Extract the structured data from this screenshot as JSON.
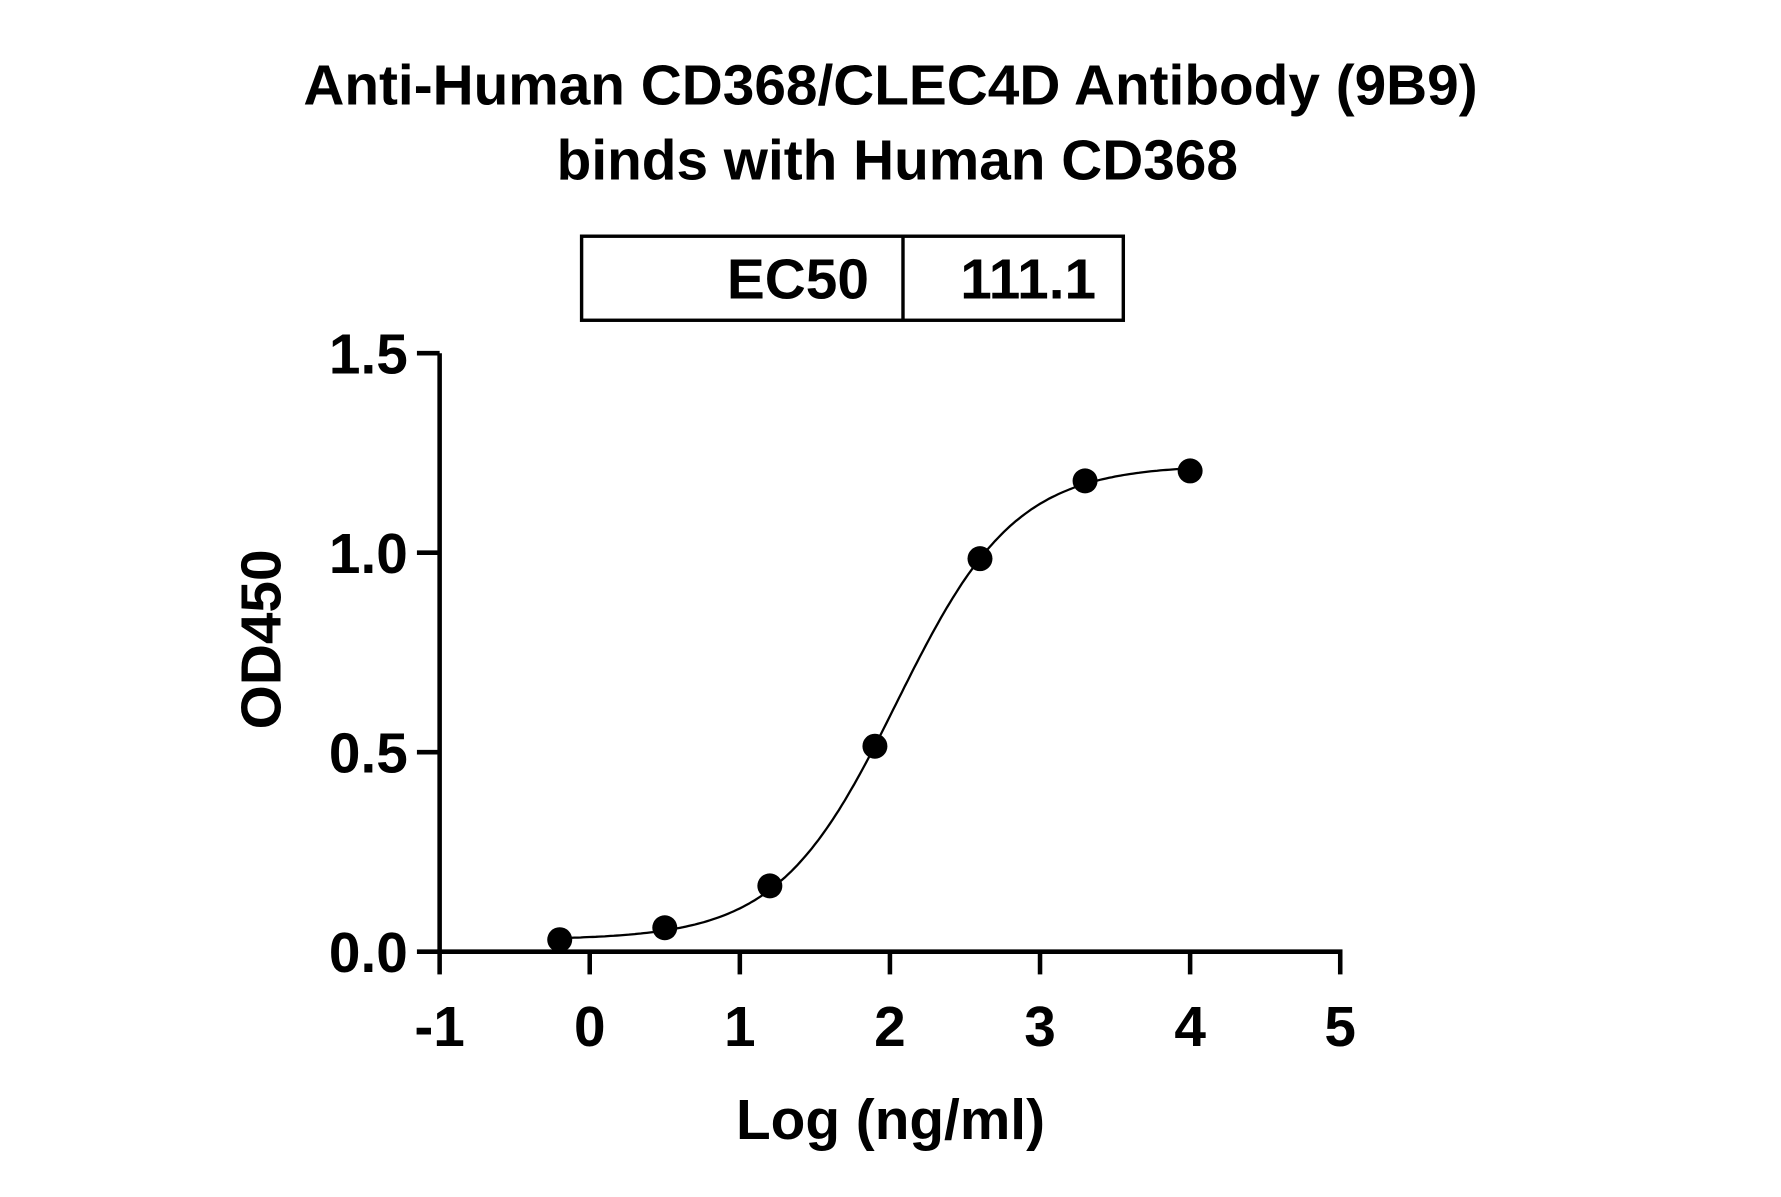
{
  "chart_data": {
    "type": "scatter",
    "title": [
      "Anti-Human CD368/CLEC4D Antibody (9B9)",
      "binds with Human CD368"
    ],
    "xlabel": "Log (ng/ml)",
    "ylabel": "OD450",
    "xlim": [
      -1,
      5
    ],
    "ylim": [
      0,
      1.5
    ],
    "xticks": [
      "-1",
      "0",
      "1",
      "2",
      "3",
      "4",
      "5"
    ],
    "yticks": [
      "0.0",
      "0.5",
      "1.0",
      "1.5"
    ],
    "grid": false,
    "legend_table": {
      "label": "EC50",
      "value": "111.1"
    },
    "points": {
      "x": [
        -0.2,
        0.5,
        1.2,
        1.9,
        2.6,
        3.3,
        4.0
      ],
      "y": [
        0.03,
        0.06,
        0.165,
        0.515,
        0.985,
        1.18,
        1.205
      ]
    },
    "fit": {
      "model": "4PL",
      "bottom": 0.03,
      "top": 1.22,
      "log_ec50": 2.046,
      "hill": 1.1
    }
  }
}
